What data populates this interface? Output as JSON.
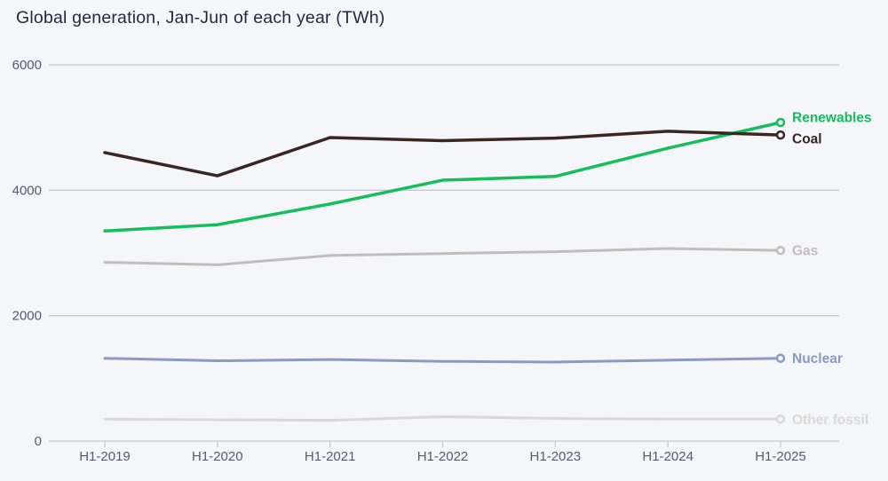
{
  "page": {
    "background_color": "#f5f6fa",
    "gridline_color": "#c4c9d5",
    "axis_text_color": "#525b72",
    "title_color": "#1f2840"
  },
  "chart_data": {
    "type": "line",
    "title": "Global generation, Jan-Jun of each year (TWh)",
    "xlabel": "",
    "ylabel": "",
    "categories": [
      "H1-2019",
      "H1-2020",
      "H1-2021",
      "H1-2022",
      "H1-2023",
      "H1-2024",
      "H1-2025"
    ],
    "series": [
      {
        "name": "Renewables",
        "color": "#16bd5c",
        "stroke_width": 3.5,
        "label_dy": -6,
        "values": [
          3350,
          3450,
          3780,
          4160,
          4220,
          4670,
          5080
        ]
      },
      {
        "name": "Coal",
        "color": "#3a2521",
        "stroke_width": 3.5,
        "label_dy": 4,
        "values": [
          4600,
          4230,
          4840,
          4790,
          4830,
          4940,
          4880
        ]
      },
      {
        "name": "Gas",
        "color": "#c4bcba",
        "stroke_width": 3,
        "label_dy": 0,
        "values": [
          2850,
          2810,
          2960,
          2990,
          3020,
          3070,
          3040
        ]
      },
      {
        "name": "Nuclear",
        "color": "#8d9ac0",
        "stroke_width": 3,
        "label_dy": 0,
        "values": [
          1320,
          1280,
          1300,
          1270,
          1260,
          1290,
          1320
        ]
      },
      {
        "name": "Other fossil",
        "color": "#dbd8d7",
        "stroke_width": 3,
        "label_dy": 0,
        "values": [
          350,
          340,
          330,
          390,
          360,
          350,
          350
        ]
      }
    ],
    "ylim": [
      0,
      6000
    ],
    "yticks": [
      0,
      2000,
      4000,
      6000
    ],
    "grid": true,
    "legend_position": "end-of-line-labels",
    "marker": "open-circle-at-last-point"
  }
}
